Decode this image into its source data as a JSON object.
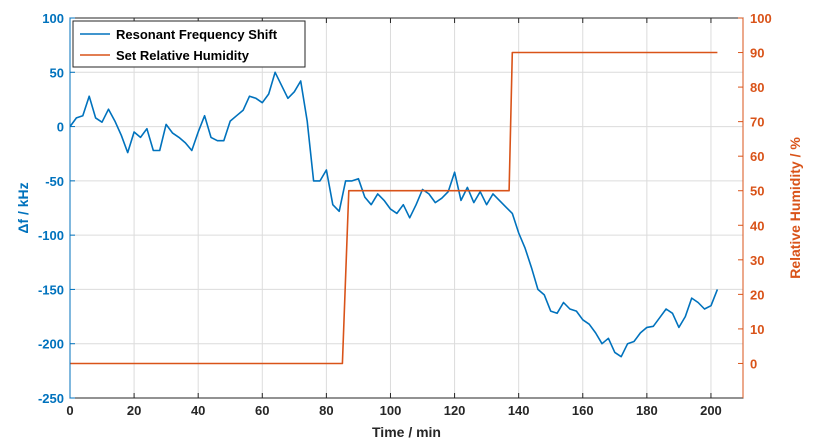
{
  "chart_data": {
    "type": "line",
    "xlabel": "Time / min",
    "ylabel_left": "Δf / kHz",
    "ylabel_right": "Relative Humidity / %",
    "xlim": [
      0,
      210
    ],
    "ylim_left": [
      -250,
      100
    ],
    "ylim_right": [
      -10,
      100
    ],
    "x_ticks": [
      0,
      20,
      40,
      60,
      80,
      100,
      120,
      140,
      160,
      180,
      200
    ],
    "y_left_ticks": [
      100,
      50,
      0,
      -50,
      -100,
      -150,
      -200,
      -250
    ],
    "y_right_ticks": [
      100,
      90,
      80,
      70,
      60,
      50,
      40,
      30,
      20,
      10,
      0
    ],
    "grid": true,
    "legend_position": "top-left",
    "colors": {
      "left_axis": "#0072BD",
      "right_axis": "#D95319"
    },
    "series": [
      {
        "name": "Resonant Frequency Shift",
        "axis": "left",
        "color": "#0072BD",
        "x": [
          0,
          2,
          4,
          6,
          8,
          10,
          12,
          14,
          16,
          18,
          20,
          22,
          24,
          26,
          28,
          30,
          32,
          34,
          36,
          38,
          40,
          42,
          44,
          46,
          48,
          50,
          52,
          54,
          56,
          58,
          60,
          62,
          64,
          66,
          68,
          70,
          72,
          74,
          76,
          78,
          80,
          82,
          84,
          86,
          88,
          90,
          92,
          94,
          96,
          98,
          100,
          102,
          104,
          106,
          108,
          110,
          112,
          114,
          116,
          118,
          120,
          122,
          124,
          126,
          128,
          130,
          132,
          134,
          136,
          138,
          140,
          142,
          144,
          146,
          148,
          150,
          152,
          154,
          156,
          158,
          160,
          162,
          164,
          166,
          168,
          170,
          172,
          174,
          176,
          178,
          180,
          182,
          184,
          186,
          188,
          190,
          192,
          194,
          196,
          198,
          200,
          202
        ],
        "values": [
          0,
          8,
          10,
          28,
          8,
          4,
          16,
          5,
          -8,
          -24,
          -5,
          -10,
          -2,
          -22,
          -22,
          2,
          -6,
          -10,
          -15,
          -22,
          -5,
          10,
          -10,
          -13,
          -13,
          5,
          10,
          15,
          28,
          26,
          22,
          30,
          50,
          38,
          26,
          32,
          42,
          5,
          -50,
          -50,
          -40,
          -72,
          -78,
          -50,
          -50,
          -48,
          -65,
          -72,
          -62,
          -68,
          -76,
          -80,
          -72,
          -84,
          -72,
          -58,
          -62,
          -70,
          -66,
          -60,
          -42,
          -68,
          -56,
          -70,
          -60,
          -72,
          -62,
          -68,
          -74,
          -80,
          -98,
          -112,
          -130,
          -150,
          -155,
          -170,
          -172,
          -162,
          -168,
          -170,
          -178,
          -182,
          -190,
          -200,
          -195,
          -208,
          -212,
          -200,
          -198,
          -190,
          -185,
          -184,
          -176,
          -168,
          -172,
          -185,
          -175,
          -158,
          -162,
          -168,
          -165,
          -150
        ]
      },
      {
        "name": "Set Relative Humidity",
        "axis": "right",
        "color": "#D95319",
        "x": [
          0,
          85,
          87,
          137,
          138,
          202
        ],
        "values": [
          0,
          0,
          50,
          50,
          90,
          90
        ]
      }
    ]
  }
}
